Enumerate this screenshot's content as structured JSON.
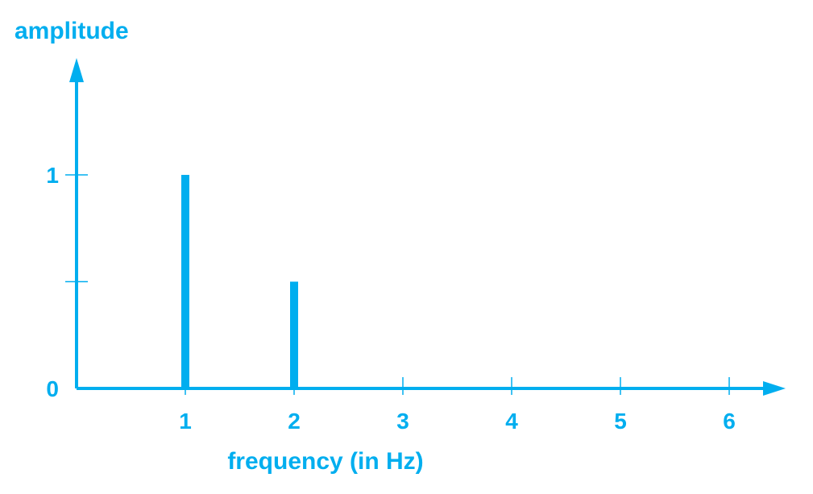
{
  "chart_data": {
    "type": "bar",
    "ylabel": "amplitude",
    "xlabel": "frequency (in Hz)",
    "x_ticks": [
      1,
      2,
      3,
      4,
      5,
      6
    ],
    "y_ticks": [
      0,
      0.5,
      1
    ],
    "y_tick_labels": [
      "0",
      "",
      "1"
    ],
    "xlim": [
      0,
      6.5
    ],
    "ylim": [
      0,
      1.55
    ],
    "series": [
      {
        "x": [
          1,
          2
        ],
        "values": [
          1,
          0.5
        ]
      }
    ],
    "grid": false,
    "legend": "none",
    "color": "#00aeef"
  }
}
